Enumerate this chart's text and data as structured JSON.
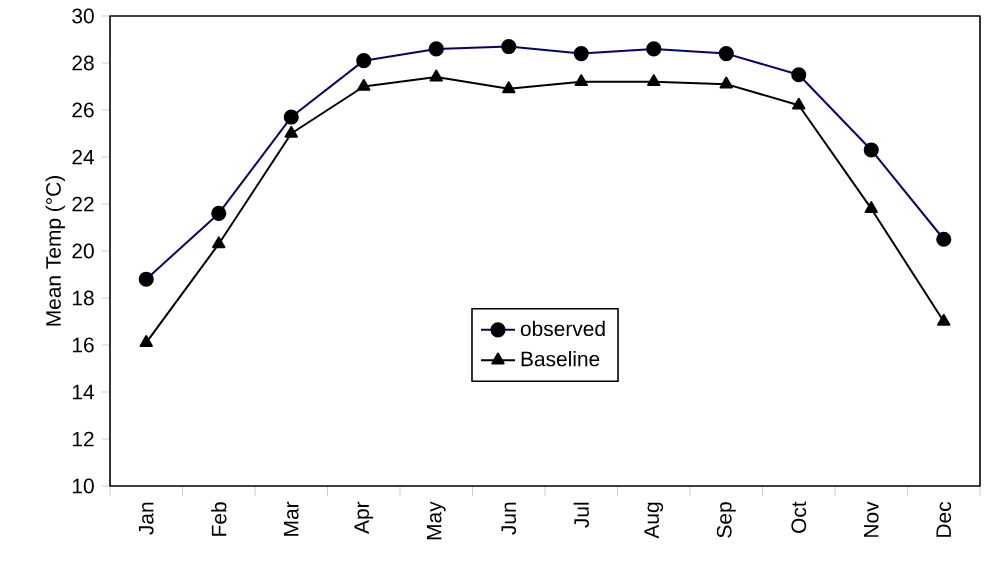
{
  "chart_data": {
    "type": "line",
    "ylabel": "Mean Temp (°C)",
    "categories": [
      "Jan",
      "Feb",
      "Mar",
      "Apr",
      "May",
      "Jun",
      "Jul",
      "Aug",
      "Sep",
      "Oct",
      "Nov",
      "Dec"
    ],
    "series": [
      {
        "name": "observed",
        "color": "#000080",
        "marker": "circle",
        "values": [
          18.8,
          21.6,
          25.7,
          28.1,
          28.6,
          28.7,
          28.4,
          28.6,
          28.4,
          27.5,
          24.3,
          20.5
        ]
      },
      {
        "name": "Baseline",
        "color": "#000000",
        "marker": "triangle",
        "values": [
          16.1,
          20.3,
          25.0,
          27.0,
          27.4,
          26.9,
          27.2,
          27.2,
          27.1,
          26.2,
          21.8,
          17.0
        ]
      }
    ],
    "ylim": [
      10,
      30
    ],
    "yticks": [
      10,
      12,
      14,
      16,
      18,
      20,
      22,
      24,
      26,
      28,
      30
    ],
    "legend": "center",
    "grid": false
  }
}
